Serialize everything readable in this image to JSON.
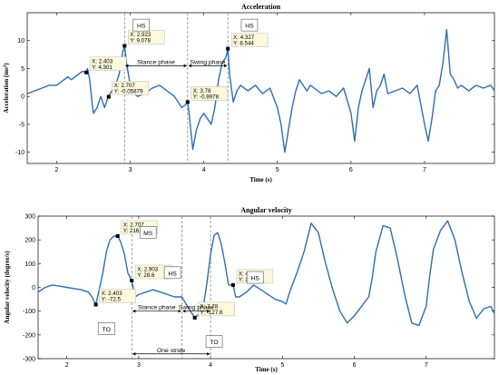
{
  "chart_data": [
    {
      "type": "line",
      "title": "Acceleration",
      "xlabel": "Time (s)",
      "ylabel": "Acceleration (ms",
      "ylabel_sup": "2",
      "ylabel_end": ")",
      "xlim": [
        1.6,
        7.95
      ],
      "ylim": [
        -12,
        15
      ],
      "xticks": [
        2,
        3,
        4,
        5,
        6,
        7
      ],
      "yticks": [
        -10,
        -5,
        0,
        5,
        10
      ],
      "grid": false,
      "series_color": "#2e6db4",
      "series": [
        {
          "x": [
            1.6,
            1.7,
            1.8,
            1.9,
            2.0,
            2.05,
            2.1,
            2.15,
            2.2,
            2.25,
            2.3,
            2.35,
            2.4,
            2.42,
            2.45,
            2.48,
            2.5,
            2.55,
            2.6,
            2.65,
            2.7,
            2.75,
            2.8,
            2.85,
            2.9,
            2.923,
            2.95,
            3.0,
            3.05,
            3.1,
            3.2,
            3.3,
            3.4,
            3.5,
            3.55,
            3.6,
            3.65,
            3.7,
            3.75,
            3.78,
            3.8,
            3.85,
            3.9,
            3.95,
            4.0,
            4.05,
            4.1,
            4.15,
            4.2,
            4.25,
            4.3,
            4.327,
            4.35,
            4.4,
            4.45,
            4.5,
            4.6,
            4.7,
            4.8,
            4.9,
            5.0,
            5.05,
            5.1,
            5.15,
            5.2,
            5.25,
            5.3,
            5.35,
            5.4,
            5.45,
            5.5,
            5.6,
            5.7,
            5.8,
            5.9,
            6.0,
            6.05,
            6.1,
            6.15,
            6.2,
            6.25,
            6.3,
            6.35,
            6.4,
            6.45,
            6.5,
            6.6,
            6.7,
            6.8,
            6.9,
            7.0,
            7.05,
            7.1,
            7.15,
            7.2,
            7.25,
            7.3,
            7.35,
            7.4,
            7.45,
            7.5,
            7.6,
            7.7,
            7.8,
            7.9,
            7.95
          ],
          "y": [
            0.5,
            1.0,
            1.5,
            2.0,
            2.0,
            2.5,
            3.0,
            3.5,
            3.0,
            3.5,
            4.0,
            4.5,
            4.301,
            5.0,
            3.0,
            -1.0,
            -3.0,
            -2.0,
            0.0,
            -2.0,
            -0.05879,
            1.0,
            2.0,
            4.0,
            8.0,
            9.078,
            6.0,
            2.0,
            0.5,
            0.0,
            0.5,
            1.5,
            2.0,
            1.0,
            0.5,
            0.0,
            -1.0,
            -2.0,
            -1.5,
            -0.9978,
            -3.0,
            -9.5,
            -6.0,
            -4.0,
            -3.0,
            -4.0,
            -5.0,
            -2.0,
            3.0,
            6.0,
            7.0,
            8.544,
            4.0,
            -1.0,
            1.0,
            2.0,
            1.0,
            2.0,
            0.5,
            1.5,
            -2.0,
            -5.0,
            -10.0,
            -6.0,
            -2.0,
            1.0,
            3.0,
            2.0,
            1.0,
            2.0,
            1.5,
            0.5,
            1.0,
            0.0,
            1.5,
            -3.0,
            -8.0,
            -2.0,
            1.0,
            3.0,
            5.0,
            -2.0,
            1.0,
            2.0,
            4.0,
            0.5,
            1.0,
            1.5,
            0.5,
            2.0,
            -5.0,
            -8.0,
            -4.0,
            1.0,
            2.0,
            6.0,
            12.0,
            4.0,
            3.0,
            1.5,
            2.0,
            1.0,
            2.0,
            1.5,
            2.0,
            1.0
          ]
        }
      ],
      "annotations": [
        {
          "type": "datatip",
          "x": 2.403,
          "y": 4.301,
          "lines": [
            "X: 2.403",
            "Y: 4.301"
          ]
        },
        {
          "type": "datatip",
          "x": 2.707,
          "y": -0.05879,
          "lines": [
            "X: 2.707",
            "Y: -0.05879"
          ]
        },
        {
          "type": "datatip",
          "x": 2.923,
          "y": 9.078,
          "lines": [
            "X: 2.923",
            "Y: 9.078"
          ]
        },
        {
          "type": "datatip",
          "x": 3.78,
          "y": -0.9978,
          "lines": [
            "X: 3.78",
            "Y: -0.9978"
          ]
        },
        {
          "type": "datatip",
          "x": 4.327,
          "y": 8.544,
          "lines": [
            "X: 4.327",
            "Y: 8.544"
          ]
        },
        {
          "type": "label",
          "text": "HS",
          "x": 3.15,
          "y": 12.7
        },
        {
          "type": "label",
          "text": "HS",
          "x": 4.62,
          "y": 12.7
        },
        {
          "type": "arrow",
          "text": "Stance phase",
          "x1": 2.923,
          "x2": 3.78,
          "y": 5.5
        },
        {
          "type": "arrow",
          "text": "Swing phase",
          "x1": 3.78,
          "x2": 4.327,
          "y": 5.5
        }
      ],
      "vlines": [
        2.923,
        3.78,
        4.327
      ]
    },
    {
      "type": "line",
      "title": "Angular velocity",
      "xlabel": "Time (s)",
      "ylabel": "Angular velocity (degree/s)",
      "xlim": [
        1.6,
        7.95
      ],
      "ylim": [
        -300,
        300
      ],
      "xticks": [
        2,
        3,
        4,
        5,
        6,
        7
      ],
      "yticks": [
        -300,
        -200,
        -100,
        0,
        100,
        200,
        300
      ],
      "grid": false,
      "series_color": "#2e6db4",
      "series": [
        {
          "x": [
            1.6,
            1.7,
            1.8,
            1.9,
            2.0,
            2.1,
            2.2,
            2.3,
            2.35,
            2.403,
            2.45,
            2.5,
            2.55,
            2.6,
            2.65,
            2.707,
            2.75,
            2.8,
            2.85,
            2.903,
            2.95,
            3.0,
            3.1,
            3.2,
            3.3,
            3.4,
            3.5,
            3.6,
            3.7,
            3.78,
            3.85,
            3.9,
            3.95,
            4.0,
            4.05,
            4.1,
            4.15,
            4.2,
            4.25,
            4.313,
            4.35,
            4.4,
            4.5,
            4.6,
            4.7,
            4.8,
            4.9,
            5.0,
            5.05,
            5.1,
            5.2,
            5.3,
            5.4,
            5.5,
            5.6,
            5.7,
            5.8,
            5.9,
            6.0,
            6.1,
            6.2,
            6.25,
            6.3,
            6.4,
            6.5,
            6.6,
            6.7,
            6.8,
            6.9,
            7.0,
            7.05,
            7.1,
            7.2,
            7.3,
            7.4,
            7.5,
            7.6,
            7.7,
            7.8,
            7.9,
            7.95
          ],
          "y": [
            -20,
            0,
            10,
            5,
            0,
            -5,
            -10,
            -20,
            -40,
            -72.5,
            -10,
            60,
            150,
            200,
            215,
            216.2,
            190,
            140,
            60,
            28.6,
            -40,
            -30,
            -20,
            -10,
            -20,
            -30,
            -40,
            -40,
            -90,
            -127.6,
            -110,
            -80,
            20,
            140,
            220,
            230,
            180,
            100,
            10,
            10.06,
            -40,
            -40,
            -20,
            10,
            -10,
            -30,
            -50,
            -60,
            -70,
            -20,
            60,
            150,
            270,
            230,
            100,
            -10,
            -100,
            -150,
            -120,
            -80,
            -40,
            40,
            150,
            260,
            250,
            120,
            -30,
            -150,
            -160,
            -80,
            50,
            160,
            240,
            280,
            200,
            60,
            -60,
            -130,
            -90,
            -80,
            -110
          ]
        }
      ],
      "annotations": [
        {
          "type": "datatip",
          "x": 2.403,
          "y": -72.5,
          "lines": [
            "X: 2.403",
            "Y: -72.5"
          ]
        },
        {
          "type": "datatip",
          "x": 2.707,
          "y": 216.2,
          "lines": [
            "X: 2.707",
            "Y: 216.2"
          ]
        },
        {
          "type": "datatip",
          "x": 2.903,
          "y": 28.6,
          "lines": [
            "X: 2.903",
            "Y: 28.6"
          ]
        },
        {
          "type": "datatip",
          "x": 3.78,
          "y": -127.6,
          "lines": [
            "X: 3.78",
            "Y: -127.6"
          ]
        },
        {
          "type": "datatip",
          "x": 4.313,
          "y": 10.06,
          "lines": [
            "X: 4.313",
            "Y: 10.06"
          ]
        },
        {
          "type": "label",
          "text": "TO",
          "x": 2.55,
          "y": -175
        },
        {
          "type": "label",
          "text": "MS",
          "x": 3.13,
          "y": 230
        },
        {
          "type": "label",
          "text": "HS",
          "x": 3.47,
          "y": 60
        },
        {
          "type": "label",
          "text": "TO",
          "x": 4.05,
          "y": -230
        },
        {
          "type": "label",
          "text": "HS",
          "x": 4.62,
          "y": 40
        },
        {
          "type": "arrow",
          "text": "Stance phase",
          "x1": 2.903,
          "x2": 3.6,
          "y": -100
        },
        {
          "type": "arrow",
          "text": "Swing phase",
          "x1": 3.6,
          "x2": 4.0,
          "y": -100
        },
        {
          "type": "arrow",
          "text": "One stride",
          "x1": 2.903,
          "x2": 4.0,
          "y": -280
        }
      ],
      "vlines": [
        2.903,
        3.6,
        4.0
      ]
    }
  ]
}
